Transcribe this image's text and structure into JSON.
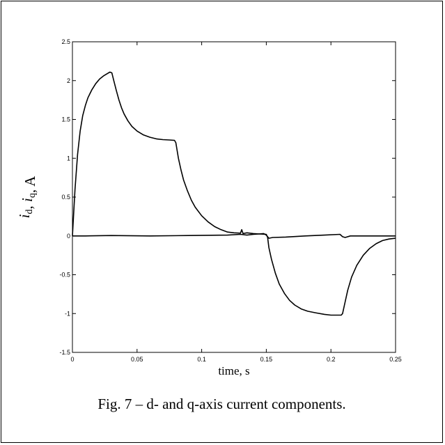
{
  "caption": "Fig. 7 – d- and q-axis current components.",
  "chart_data": {
    "type": "line",
    "xlabel": "time, s",
    "ylabel": {
      "parts": [
        {
          "t": "i",
          "i": true
        },
        {
          "t": "d",
          "sub": true
        },
        {
          "t": ", "
        },
        {
          "t": "i",
          "i": true
        },
        {
          "t": "q",
          "sub": true
        },
        {
          "t": ", A"
        }
      ]
    },
    "xlim": [
      0,
      0.25
    ],
    "ylim": [
      -1.5,
      2.5
    ],
    "xticks": [
      0,
      0.05,
      0.1,
      0.15,
      0.2,
      0.25
    ],
    "xtick_labels": [
      "0",
      "0.05",
      "0.1",
      "0.15",
      "0.2",
      "0.25"
    ],
    "yticks": [
      -1.5,
      -1,
      -0.5,
      0,
      0.5,
      1,
      1.5,
      2,
      2.5
    ],
    "ytick_labels": [
      "-1.5",
      "-1",
      "-0.5",
      "0",
      "0.5",
      "1",
      "1.5",
      "2",
      "2.5"
    ],
    "grid": false,
    "line_color": "#000000",
    "series": [
      {
        "points": [
          [
            0,
            0
          ],
          [
            0.002,
            0.6
          ],
          [
            0.004,
            1.05
          ],
          [
            0.006,
            1.35
          ],
          [
            0.008,
            1.55
          ],
          [
            0.01,
            1.68
          ],
          [
            0.012,
            1.78
          ],
          [
            0.015,
            1.88
          ],
          [
            0.018,
            1.96
          ],
          [
            0.021,
            2.02
          ],
          [
            0.024,
            2.06
          ],
          [
            0.027,
            2.09
          ],
          [
            0.029,
            2.11
          ],
          [
            0.0305,
            2.1
          ],
          [
            0.032,
            2.0
          ],
          [
            0.034,
            1.87
          ],
          [
            0.036,
            1.75
          ],
          [
            0.038,
            1.65
          ],
          [
            0.04,
            1.57
          ],
          [
            0.043,
            1.48
          ],
          [
            0.046,
            1.41
          ],
          [
            0.05,
            1.35
          ],
          [
            0.055,
            1.3
          ],
          [
            0.06,
            1.27
          ],
          [
            0.065,
            1.25
          ],
          [
            0.07,
            1.24
          ],
          [
            0.075,
            1.235
          ],
          [
            0.079,
            1.23
          ],
          [
            0.08,
            1.2
          ],
          [
            0.082,
            1.0
          ],
          [
            0.084,
            0.85
          ],
          [
            0.086,
            0.72
          ],
          [
            0.089,
            0.58
          ],
          [
            0.092,
            0.46
          ],
          [
            0.095,
            0.37
          ],
          [
            0.1,
            0.26
          ],
          [
            0.105,
            0.18
          ],
          [
            0.11,
            0.12
          ],
          [
            0.115,
            0.08
          ],
          [
            0.12,
            0.05
          ],
          [
            0.125,
            0.04
          ],
          [
            0.13,
            0.035
          ],
          [
            0.131,
            0.08
          ],
          [
            0.132,
            0.03
          ],
          [
            0.135,
            0.04
          ],
          [
            0.14,
            0.03
          ],
          [
            0.145,
            0.025
          ],
          [
            0.15,
            0.02
          ],
          [
            0.151,
            -0.02
          ],
          [
            0.152,
            -0.15
          ],
          [
            0.154,
            -0.3
          ],
          [
            0.157,
            -0.48
          ],
          [
            0.16,
            -0.62
          ],
          [
            0.164,
            -0.74
          ],
          [
            0.168,
            -0.83
          ],
          [
            0.172,
            -0.89
          ],
          [
            0.177,
            -0.94
          ],
          [
            0.182,
            -0.97
          ],
          [
            0.188,
            -0.99
          ],
          [
            0.195,
            -1.01
          ],
          [
            0.2,
            -1.02
          ],
          [
            0.205,
            -1.02
          ],
          [
            0.208,
            -1.02
          ],
          [
            0.209,
            -1.0
          ],
          [
            0.211,
            -0.85
          ],
          [
            0.213,
            -0.7
          ],
          [
            0.216,
            -0.53
          ],
          [
            0.22,
            -0.38
          ],
          [
            0.225,
            -0.25
          ],
          [
            0.23,
            -0.16
          ],
          [
            0.235,
            -0.1
          ],
          [
            0.24,
            -0.06
          ],
          [
            0.245,
            -0.04
          ],
          [
            0.25,
            -0.03
          ]
        ]
      },
      {
        "points": [
          [
            0,
            0
          ],
          [
            0.01,
            0
          ],
          [
            0.03,
            0.005
          ],
          [
            0.06,
            0.0
          ],
          [
            0.09,
            0.005
          ],
          [
            0.12,
            0.01
          ],
          [
            0.13,
            0.02
          ],
          [
            0.135,
            0.01
          ],
          [
            0.14,
            0.02
          ],
          [
            0.148,
            0.03
          ],
          [
            0.15,
            0.01
          ],
          [
            0.152,
            -0.03
          ],
          [
            0.155,
            -0.02
          ],
          [
            0.165,
            -0.015
          ],
          [
            0.18,
            0.0
          ],
          [
            0.195,
            0.01
          ],
          [
            0.207,
            0.02
          ],
          [
            0.209,
            -0.01
          ],
          [
            0.211,
            -0.02
          ],
          [
            0.215,
            0.0
          ],
          [
            0.25,
            0.0
          ]
        ]
      }
    ]
  }
}
